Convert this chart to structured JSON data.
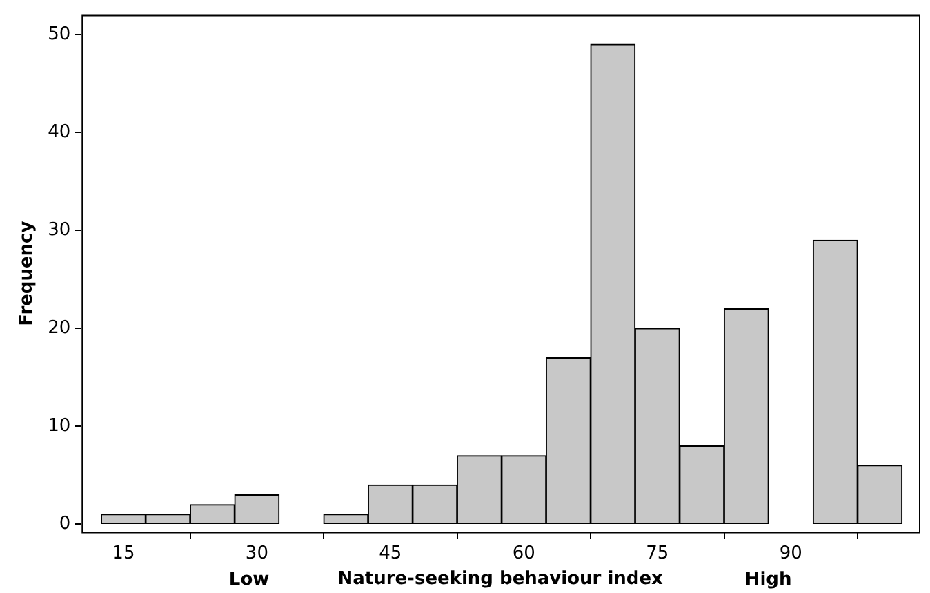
{
  "chart_data": {
    "type": "histogram",
    "xlabel": "Nature-seeking behaviour index",
    "ylabel": "Frequency",
    "bins": [
      12.5,
      17.5,
      22.5,
      27.5,
      32.5,
      37.5,
      42.5,
      47.5,
      52.5,
      57.5,
      62.5,
      67.5,
      72.5,
      77.5,
      82.5,
      87.5,
      92.5,
      97.5,
      102.5
    ],
    "values": [
      1,
      1,
      2,
      3,
      0,
      1,
      4,
      4,
      7,
      7,
      17,
      49,
      20,
      8,
      22,
      0,
      29,
      6
    ],
    "color": "#c8c8c8",
    "xlim": [
      10.3,
      104.4
    ],
    "xticks": [
      15,
      30,
      45,
      60,
      75,
      90
    ],
    "ylim": [
      -0.8,
      52
    ],
    "yticks": [
      0,
      10,
      20,
      30,
      40,
      50
    ],
    "grid": false,
    "legend": false,
    "annotations": [
      "Low",
      "High"
    ]
  }
}
